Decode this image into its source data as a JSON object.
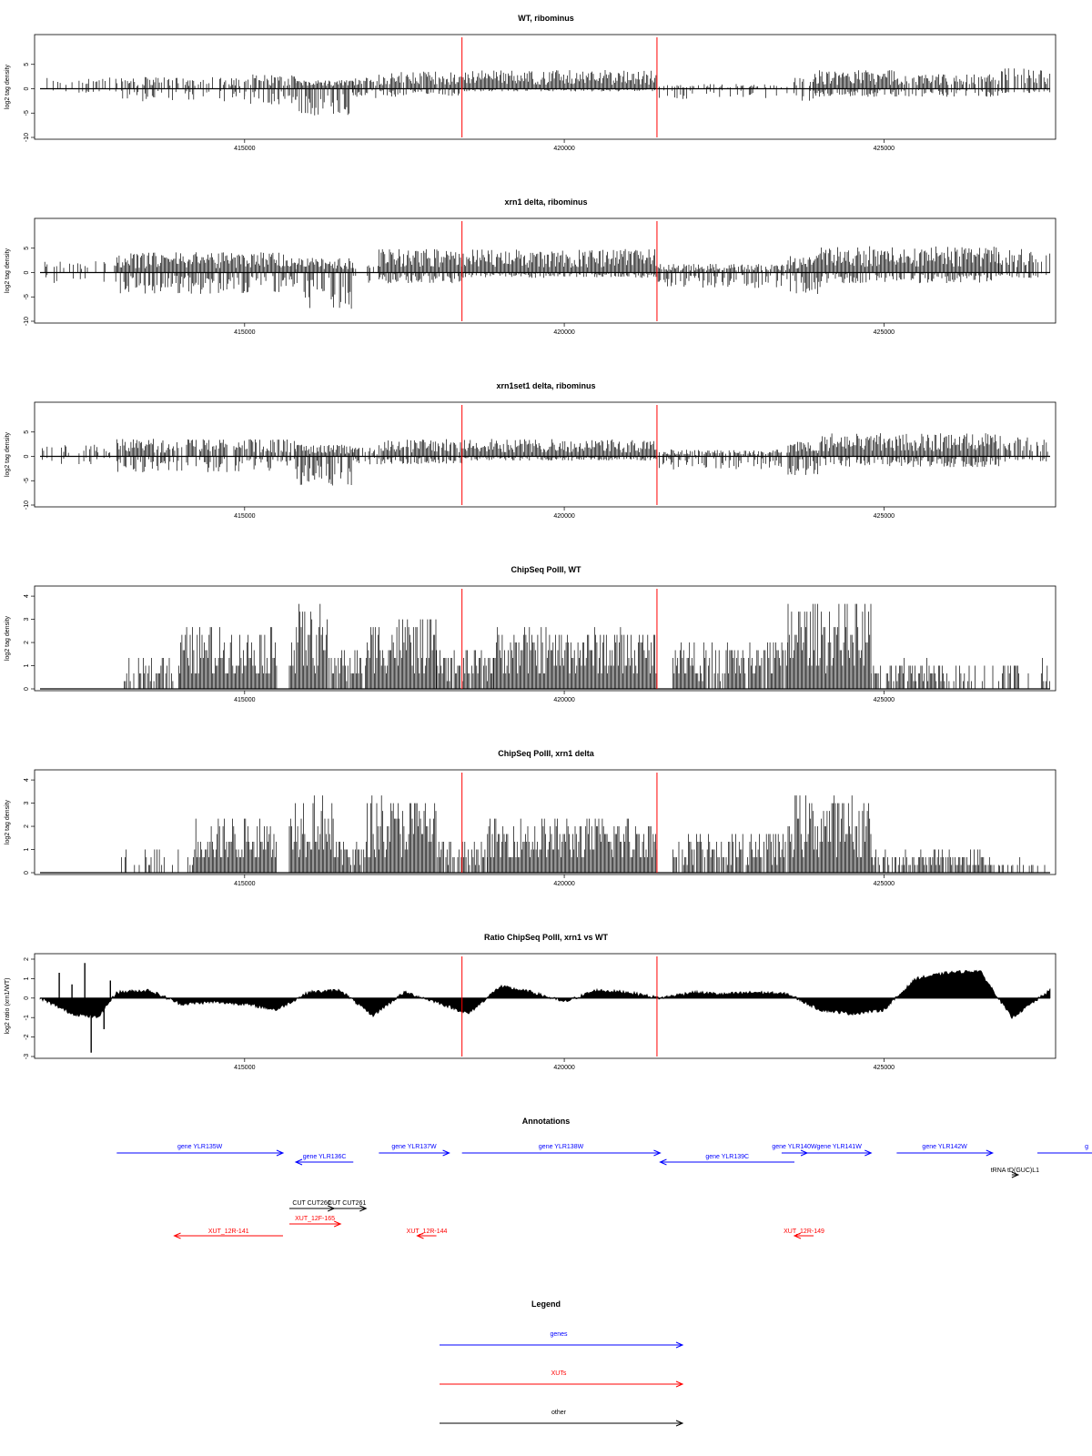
{
  "colors": {
    "gene": "#0000ff",
    "xut": "#ff0000",
    "other": "#000000",
    "marker": "#ff0000"
  },
  "chart_data": [
    {
      "id": "wt_ribominus",
      "type": "bar",
      "title": "WT, ribominus",
      "ylabel": "log2 tag density",
      "xlim": [
        411800,
        427600
      ],
      "ylim": [
        -10,
        10
      ],
      "yticks": [
        "-10",
        "-5",
        "0",
        "5"
      ],
      "xticks": [
        "415000",
        "420000",
        "425000"
      ],
      "markers_x": [
        418400,
        421450
      ],
      "segments": [
        {
          "x": [
            411800,
            413000
          ],
          "pos": 2.0,
          "neg": -1.0,
          "density": 0.3
        },
        {
          "x": [
            413000,
            415000
          ],
          "pos": 2.0,
          "neg": -2.5,
          "density": 0.6
        },
        {
          "x": [
            415000,
            415800
          ],
          "pos": 2.5,
          "neg": -3.0,
          "density": 0.7
        },
        {
          "x": [
            415800,
            416700
          ],
          "pos": 1.5,
          "neg": -5.0,
          "density": 1.0
        },
        {
          "x": [
            416700,
            417100
          ],
          "pos": 2.0,
          "neg": -2.0,
          "density": 0.6
        },
        {
          "x": [
            417100,
            418400
          ],
          "pos": 3.0,
          "neg": -1.5,
          "density": 0.9
        },
        {
          "x": [
            418400,
            421450
          ],
          "pos": 3.2,
          "neg": -0.5,
          "density": 1.0
        },
        {
          "x": [
            421450,
            423500
          ],
          "pos": 0.8,
          "neg": -2.0,
          "density": 0.4
        },
        {
          "x": [
            423500,
            423900
          ],
          "pos": 2.0,
          "neg": -2.5,
          "density": 0.6
        },
        {
          "x": [
            423900,
            425300
          ],
          "pos": 3.2,
          "neg": -1.5,
          "density": 1.0
        },
        {
          "x": [
            425300,
            426800
          ],
          "pos": 2.5,
          "neg": -1.5,
          "density": 0.8
        },
        {
          "x": [
            426800,
            427600
          ],
          "pos": 3.5,
          "neg": -0.8,
          "density": 0.7
        }
      ]
    },
    {
      "id": "xrn1_ribominus",
      "type": "bar",
      "title": "xrn1 delta, ribominus",
      "ylabel": "log2 tag density",
      "xlim": [
        411800,
        427600
      ],
      "ylim": [
        -10,
        10
      ],
      "yticks": [
        "-10",
        "-5",
        "0",
        "5"
      ],
      "xticks": [
        "415000",
        "420000",
        "425000"
      ],
      "markers_x": [
        418400,
        421450
      ],
      "segments": [
        {
          "x": [
            411800,
            413000
          ],
          "pos": 2.0,
          "neg": -2.0,
          "density": 0.3
        },
        {
          "x": [
            413000,
            415800
          ],
          "pos": 3.5,
          "neg": -4.0,
          "density": 1.0
        },
        {
          "x": [
            415800,
            416700
          ],
          "pos": 2.5,
          "neg": -7.0,
          "density": 1.0
        },
        {
          "x": [
            416700,
            417100
          ],
          "pos": 1.5,
          "neg": -2.0,
          "density": 0.5
        },
        {
          "x": [
            417100,
            418400
          ],
          "pos": 4.0,
          "neg": -2.0,
          "density": 1.0
        },
        {
          "x": [
            418400,
            421450
          ],
          "pos": 4.0,
          "neg": -1.0,
          "density": 1.0
        },
        {
          "x": [
            421450,
            423500
          ],
          "pos": 1.5,
          "neg": -3.0,
          "density": 0.8
        },
        {
          "x": [
            423500,
            424000
          ],
          "pos": 3.0,
          "neg": -4.0,
          "density": 1.0
        },
        {
          "x": [
            424000,
            426800
          ],
          "pos": 4.5,
          "neg": -2.0,
          "density": 1.0
        },
        {
          "x": [
            426800,
            427600
          ],
          "pos": 4.0,
          "neg": -1.0,
          "density": 0.6
        }
      ]
    },
    {
      "id": "xrn1set1_ribominus",
      "type": "bar",
      "title": "xrn1set1 delta, ribominus",
      "ylabel": "log2 tag density",
      "xlim": [
        411800,
        427600
      ],
      "ylim": [
        -10,
        10
      ],
      "yticks": [
        "-10",
        "-5",
        "0",
        "5"
      ],
      "xticks": [
        "415000",
        "420000",
        "425000"
      ],
      "markers_x": [
        418400,
        421450
      ],
      "segments": [
        {
          "x": [
            411800,
            413000
          ],
          "pos": 2.0,
          "neg": -1.5,
          "density": 0.3
        },
        {
          "x": [
            413000,
            415800
          ],
          "pos": 3.0,
          "neg": -3.0,
          "density": 0.8
        },
        {
          "x": [
            415800,
            416700
          ],
          "pos": 2.0,
          "neg": -5.5,
          "density": 1.0
        },
        {
          "x": [
            416700,
            417100
          ],
          "pos": 1.5,
          "neg": -1.5,
          "density": 0.5
        },
        {
          "x": [
            417100,
            418400
          ],
          "pos": 3.0,
          "neg": -1.5,
          "density": 0.9
        },
        {
          "x": [
            418400,
            421450
          ],
          "pos": 3.0,
          "neg": -0.8,
          "density": 1.0
        },
        {
          "x": [
            421450,
            423500
          ],
          "pos": 1.2,
          "neg": -2.5,
          "density": 0.7
        },
        {
          "x": [
            423500,
            424000
          ],
          "pos": 2.5,
          "neg": -3.5,
          "density": 1.0
        },
        {
          "x": [
            424000,
            426800
          ],
          "pos": 4.0,
          "neg": -2.0,
          "density": 1.0
        },
        {
          "x": [
            426800,
            427600
          ],
          "pos": 3.5,
          "neg": -1.0,
          "density": 0.6
        }
      ]
    },
    {
      "id": "chipseq_wt",
      "type": "bar",
      "title": "ChipSeq PolII, WT",
      "ylabel": "log2 tag density",
      "xlim": [
        411800,
        427600
      ],
      "ylim": [
        0,
        4.2
      ],
      "yticks": [
        "0",
        "1",
        "2",
        "3",
        "4"
      ],
      "xticks": [
        "415000",
        "420000",
        "425000"
      ],
      "markers_x": [
        418400,
        421450
      ],
      "segments": [
        {
          "x": [
            411800,
            413100
          ],
          "pos": 0,
          "neg": 0,
          "density": 0
        },
        {
          "x": [
            413100,
            414000
          ],
          "pos": 1.2,
          "neg": 0,
          "density": 0.5
        },
        {
          "x": [
            414000,
            415500
          ],
          "pos": 2.2,
          "neg": 0,
          "density": 1.0
        },
        {
          "x": [
            415500,
            415700
          ],
          "pos": 0,
          "neg": 0,
          "density": 0
        },
        {
          "x": [
            415700,
            416300
          ],
          "pos": 3.0,
          "neg": 0,
          "density": 1.0
        },
        {
          "x": [
            416300,
            416900
          ],
          "pos": 1.5,
          "neg": 0,
          "density": 0.9
        },
        {
          "x": [
            416900,
            418000
          ],
          "pos": 2.6,
          "neg": 0,
          "density": 1.0
        },
        {
          "x": [
            418000,
            418900
          ],
          "pos": 1.5,
          "neg": 0,
          "density": 0.9
        },
        {
          "x": [
            418900,
            421450
          ],
          "pos": 2.2,
          "neg": 0,
          "density": 1.0
        },
        {
          "x": [
            421450,
            421700
          ],
          "pos": 0,
          "neg": 0,
          "density": 0
        },
        {
          "x": [
            421700,
            423500
          ],
          "pos": 1.8,
          "neg": 0,
          "density": 0.9
        },
        {
          "x": [
            423500,
            424800
          ],
          "pos": 3.2,
          "neg": 0,
          "density": 1.0
        },
        {
          "x": [
            424800,
            426000
          ],
          "pos": 1.0,
          "neg": 0,
          "density": 0.7
        },
        {
          "x": [
            426000,
            427600
          ],
          "pos": 1.0,
          "neg": 0,
          "density": 0.4
        }
      ]
    },
    {
      "id": "chipseq_xrn1",
      "type": "bar",
      "title": "ChipSeq PolII, xrn1 delta",
      "ylabel": "log2 tag density",
      "xlim": [
        411800,
        427600
      ],
      "ylim": [
        0,
        4.2
      ],
      "yticks": [
        "0",
        "1",
        "2",
        "3",
        "4"
      ],
      "xticks": [
        "415000",
        "420000",
        "425000"
      ],
      "markers_x": [
        418400,
        421450
      ],
      "segments": [
        {
          "x": [
            411800,
            413000
          ],
          "pos": 0,
          "neg": 0,
          "density": 0
        },
        {
          "x": [
            413000,
            414200
          ],
          "pos": 0.8,
          "neg": 0,
          "density": 0.4
        },
        {
          "x": [
            414200,
            415500
          ],
          "pos": 2.0,
          "neg": 0,
          "density": 1.0
        },
        {
          "x": [
            415500,
            415700
          ],
          "pos": 0,
          "neg": 0,
          "density": 0
        },
        {
          "x": [
            415700,
            416400
          ],
          "pos": 3.0,
          "neg": 0,
          "density": 1.0
        },
        {
          "x": [
            416400,
            416900
          ],
          "pos": 1.2,
          "neg": 0,
          "density": 0.9
        },
        {
          "x": [
            416900,
            418000
          ],
          "pos": 2.8,
          "neg": 0,
          "density": 1.0
        },
        {
          "x": [
            418000,
            418800
          ],
          "pos": 1.2,
          "neg": 0,
          "density": 0.9
        },
        {
          "x": [
            418800,
            421450
          ],
          "pos": 2.0,
          "neg": 0,
          "density": 1.0
        },
        {
          "x": [
            421450,
            421700
          ],
          "pos": 0,
          "neg": 0,
          "density": 0
        },
        {
          "x": [
            421700,
            423500
          ],
          "pos": 1.5,
          "neg": 0,
          "density": 0.9
        },
        {
          "x": [
            423500,
            424800
          ],
          "pos": 2.8,
          "neg": 0,
          "density": 1.0
        },
        {
          "x": [
            424800,
            426700
          ],
          "pos": 0.8,
          "neg": 0,
          "density": 0.8
        },
        {
          "x": [
            426700,
            427600
          ],
          "pos": 0.5,
          "neg": 0,
          "density": 0.3
        }
      ]
    },
    {
      "id": "ratio_chipseq",
      "type": "area",
      "title": "Ratio ChipSeq PolII, xrn1 vs WT",
      "ylabel": "log2 ratio (xrn1/WT)",
      "xlim": [
        411800,
        427600
      ],
      "ylim": [
        -3,
        2
      ],
      "yticks": [
        "-3",
        "-2",
        "-1",
        "0",
        "1",
        "2"
      ],
      "xticks": [
        "415000",
        "420000",
        "425000"
      ],
      "markers_x": [
        418400,
        421450
      ],
      "x": [
        411800,
        412300,
        412700,
        413000,
        413500,
        414000,
        414500,
        415000,
        415500,
        416000,
        416500,
        417000,
        417500,
        418000,
        418500,
        419000,
        419500,
        420000,
        420500,
        421000,
        421500,
        422000,
        422500,
        423000,
        423500,
        424000,
        424500,
        425000,
        425500,
        426000,
        426500,
        427000,
        427600
      ],
      "y": [
        0.0,
        -0.8,
        -1.0,
        0.3,
        0.4,
        -0.3,
        -0.2,
        -0.3,
        -0.6,
        0.3,
        0.4,
        -0.9,
        0.3,
        -0.2,
        -0.8,
        0.6,
        0.3,
        -0.2,
        0.4,
        0.3,
        0.0,
        0.3,
        0.2,
        0.3,
        0.2,
        -0.6,
        -0.8,
        -0.6,
        1.0,
        1.3,
        1.4,
        -1.0,
        0.4
      ]
    }
  ],
  "annotations": {
    "title": "Annotations",
    "features": [
      {
        "label": "gene YLR135W",
        "type": "gene",
        "start": 413000,
        "end": 415600,
        "dir": "right",
        "row": 0
      },
      {
        "label": "gene YLR136C",
        "type": "gene",
        "start": 415800,
        "end": 416700,
        "dir": "left",
        "row": 1
      },
      {
        "label": "gene YLR137W",
        "type": "gene",
        "start": 417100,
        "end": 418200,
        "dir": "right",
        "row": 0
      },
      {
        "label": "gene YLR138W",
        "type": "gene",
        "start": 418400,
        "end": 421500,
        "dir": "right",
        "row": 0
      },
      {
        "label": "gene YLR139C",
        "type": "gene",
        "start": 421500,
        "end": 423600,
        "dir": "left",
        "row": 1
      },
      {
        "label": "gene YLR140W",
        "type": "gene",
        "start": 423400,
        "end": 423800,
        "dir": "right",
        "row": 0
      },
      {
        "label": "gene YLR141W",
        "type": "gene",
        "start": 423800,
        "end": 424800,
        "dir": "right",
        "row": 0
      },
      {
        "label": "gene YLR142W",
        "type": "gene",
        "start": 425200,
        "end": 426700,
        "dir": "right",
        "row": 0
      },
      {
        "label": "g",
        "type": "gene",
        "start": 427400,
        "end": 429000,
        "dir": "right",
        "row": 0
      },
      {
        "label": "tRNA tD(GUC)L1",
        "type": "other",
        "start": 427000,
        "end": 427100,
        "dir": "right",
        "row": 2
      },
      {
        "label": "CUT CUT260",
        "type": "other",
        "start": 415700,
        "end": 416400,
        "dir": "right",
        "row": 3
      },
      {
        "label": "CUT CUT261",
        "type": "other",
        "start": 416300,
        "end": 416900,
        "dir": "right",
        "row": 3
      },
      {
        "label": "XUT_12F-165",
        "type": "xut",
        "start": 415700,
        "end": 416500,
        "dir": "right",
        "row": 4
      },
      {
        "label": "XUT_12R-141",
        "type": "xut",
        "start": 413900,
        "end": 415600,
        "dir": "left",
        "row": 5
      },
      {
        "label": "XUT_12R-144",
        "type": "xut",
        "start": 417700,
        "end": 418000,
        "dir": "left",
        "row": 5
      },
      {
        "label": "XUT_12R-149",
        "type": "xut",
        "start": 423600,
        "end": 423900,
        "dir": "left",
        "row": 5
      }
    ]
  },
  "legend": {
    "title": "Legend",
    "items": [
      {
        "label": "genes",
        "type": "gene"
      },
      {
        "label": "XUTs",
        "type": "xut"
      },
      {
        "label": "other",
        "type": "other"
      }
    ]
  }
}
